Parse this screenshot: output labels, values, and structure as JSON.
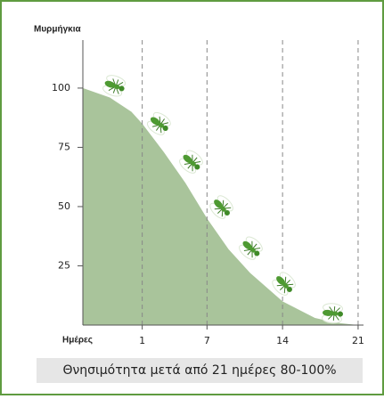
{
  "chart_data": {
    "type": "area",
    "y_label": "Μυρμήγκια",
    "x_label": "Ημέρες",
    "annotation": "Θνησιμότητα μετά από 21 ημέρες 80-100%",
    "x": [
      -4.5,
      -2,
      0,
      1,
      3,
      5,
      7,
      9,
      11,
      14,
      17,
      19,
      21
    ],
    "series": [
      {
        "color": "#a9c49b",
        "values": [
          100,
          96,
          90,
          85,
          73,
          60,
          45,
          32,
          22,
          10,
          3,
          1,
          0
        ]
      }
    ],
    "xlim": [
      -4.5,
      21.5
    ],
    "ylim": [
      0,
      115
    ],
    "xticks": [
      1,
      7,
      14,
      21
    ],
    "yticks": [
      25,
      50,
      75,
      100
    ],
    "grid": true
  }
}
